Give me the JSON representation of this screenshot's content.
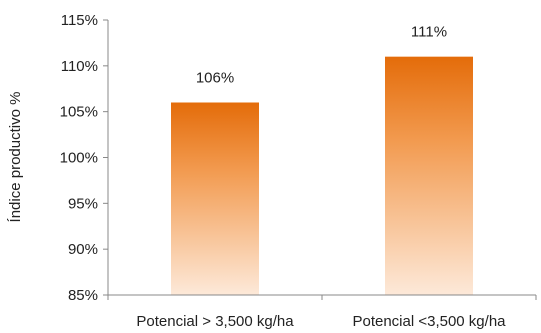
{
  "chart_data": {
    "type": "bar",
    "title": "",
    "xlabel": "",
    "ylabel": "Índice productivo %",
    "categories": [
      "Potencial > 3,500 kg/ha",
      "Potencial <3,500 kg/ha"
    ],
    "values": [
      106,
      111
    ],
    "data_labels": [
      "106%",
      "111%"
    ],
    "ylim": [
      85,
      115
    ],
    "yticks": [
      85,
      90,
      95,
      100,
      105,
      110,
      115
    ],
    "ytick_labels": [
      "85%",
      "90%",
      "95%",
      "100%",
      "105%",
      "110%",
      "115%"
    ],
    "grid": false,
    "legend": "none",
    "bar_color_top": "#e46c0a",
    "bar_color_bottom": "#fde9d9"
  }
}
